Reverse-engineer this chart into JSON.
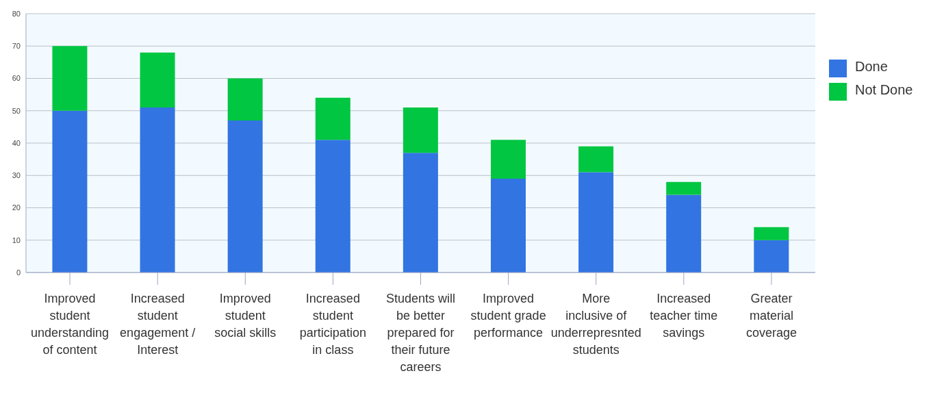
{
  "chart_data": {
    "type": "bar",
    "stacked": true,
    "categories": [
      "Improved student understanding of content",
      "Increased student engagement / Interest",
      "Improved student social skills",
      "Increased student participation in class",
      "Students will be better prepared for their future careers",
      "Improved student grade performance",
      "More inclusive of underrepresnted students",
      "Increased teacher time savings",
      "Greater material coverage"
    ],
    "series": [
      {
        "name": "Done",
        "color": "#3274e2",
        "values": [
          50,
          51,
          47,
          41,
          37,
          29,
          31,
          24,
          10
        ]
      },
      {
        "name": "Not Done",
        "color": "#00c642",
        "values": [
          20,
          17,
          13,
          13,
          14,
          12,
          8,
          4,
          4
        ]
      }
    ],
    "ylim": [
      0,
      80
    ],
    "yticks": [
      0,
      10,
      20,
      30,
      40,
      50,
      60,
      70,
      80
    ],
    "grid": "y",
    "legend": "top right"
  }
}
